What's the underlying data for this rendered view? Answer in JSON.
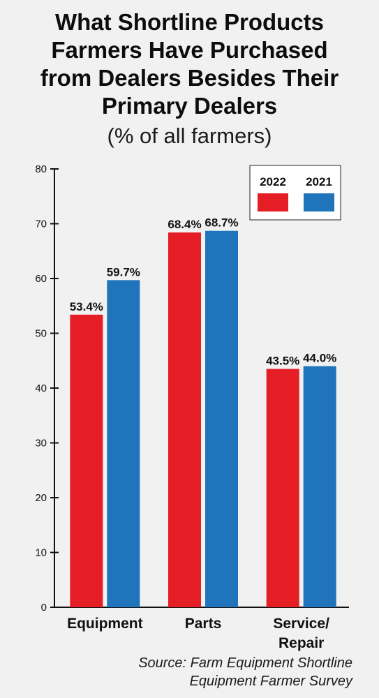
{
  "title": "What Shortline Products\nFarmers Have Purchased\nfrom Dealers Besides Their\nPrimary Dealers",
  "subtitle": "(% of all farmers)",
  "source": "Source: Farm Equipment Shortline\nEquipment Farmer Survey",
  "colors": {
    "series_2022": "#e51e25",
    "series_2021": "#1f74bc",
    "axis": "#111111",
    "background": "#f1f1f1",
    "legend_background": "#ffffff"
  },
  "chart_data": {
    "type": "bar",
    "categories": [
      [
        "Equipment"
      ],
      [
        "Parts"
      ],
      [
        "Service/",
        "Repair"
      ]
    ],
    "series": [
      {
        "name": "2022",
        "values": [
          53.4,
          68.4,
          43.5
        ],
        "labels": [
          "53.4%",
          "68.4%",
          "43.5%"
        ],
        "color": "#e51e25"
      },
      {
        "name": "2021",
        "values": [
          59.7,
          68.7,
          44.0
        ],
        "labels": [
          "59.7%",
          "68.7%",
          "44.0%"
        ],
        "color": "#1f74bc"
      }
    ],
    "ylim": [
      0,
      80
    ],
    "yticks": [
      0,
      10,
      20,
      30,
      40,
      50,
      60,
      70,
      80
    ],
    "xlabel": "",
    "ylabel": "",
    "grid": false,
    "legend_position": "top-right"
  }
}
